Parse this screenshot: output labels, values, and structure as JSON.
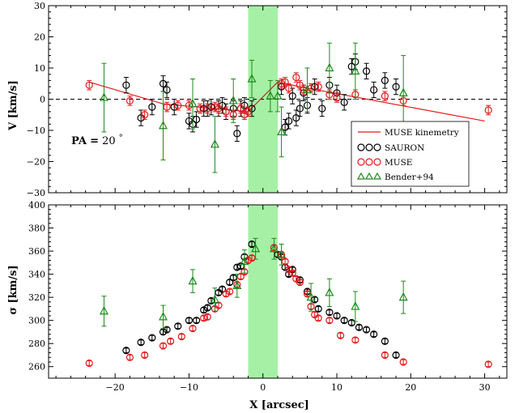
{
  "chart_data": [
    {
      "type": "scatter",
      "panel": "velocity",
      "ylabel": "V [km/s]",
      "xlim": [
        -29,
        33
      ],
      "ylim": [
        -30,
        30
      ],
      "yticks": [
        -30,
        -20,
        -10,
        0,
        10,
        20,
        30
      ],
      "xticks": [
        -20,
        -10,
        0,
        10,
        20,
        30
      ],
      "xticklabels_shown": false,
      "shaded_band": [
        -2,
        2
      ],
      "zero_line": true,
      "annotation": {
        "label": "PA",
        "eq": "=",
        "value": "20",
        "unit": "°"
      },
      "legend": {
        "placement": "lower-right",
        "entries": [
          {
            "label": "MUSE kinemetry",
            "marker": "line",
            "color": "#e41a1c"
          },
          {
            "label": "SAURON",
            "marker": "circle",
            "color": "#000000"
          },
          {
            "label": "MUSE",
            "marker": "circle",
            "color": "#e41a1c"
          },
          {
            "label": "Bender+94",
            "marker": "triangle",
            "color": "#1a8a1a"
          }
        ]
      },
      "series": [
        {
          "name": "MUSE kinemetry",
          "style": "line",
          "color": "#e41a1c",
          "x": [
            -23.5,
            -13.5,
            -2,
            2,
            5,
            30
          ],
          "y": [
            5.5,
            -1.5,
            -4,
            5.5,
            4,
            -7
          ]
        },
        {
          "name": "SAURON",
          "style": "circle",
          "color": "#000000",
          "x": [
            -18.5,
            -16.5,
            -15,
            -13.5,
            -13,
            -12,
            -10,
            -9.5,
            -9,
            -8,
            -7.5,
            -7,
            -6,
            -5.5,
            -5,
            -4,
            -3.5,
            -3,
            -2.5,
            -1.5,
            2.5,
            3,
            3.5,
            4,
            4.5,
            5,
            5.5,
            6,
            7,
            8,
            9,
            10,
            11,
            12,
            12.5,
            14,
            15,
            16.5,
            18
          ],
          "y": [
            4.5,
            -6,
            -2.5,
            5,
            3,
            -2.5,
            -7,
            -8,
            -6.5,
            -3,
            -3,
            -2.5,
            -3,
            -2,
            -4,
            -3,
            -11,
            -3,
            -2,
            -3,
            4,
            -9,
            -7,
            1,
            -6,
            -3,
            2,
            -2,
            4,
            -3,
            4.5,
            2,
            -1,
            10.5,
            12,
            9,
            3,
            6,
            4
          ],
          "err": [
            2.5,
            2.5,
            2.5,
            2.5,
            2.5,
            2.5,
            2.5,
            2.5,
            2.5,
            2.5,
            2.5,
            2.5,
            2.5,
            2.5,
            2.5,
            2.5,
            2.5,
            2.5,
            2.5,
            2.5,
            2.5,
            2.5,
            2.5,
            2.5,
            2.5,
            2.5,
            2.5,
            2.5,
            2.5,
            2.5,
            2.5,
            2.5,
            2.5,
            2.5,
            2.5,
            2.5,
            2.5,
            2.5,
            2.5
          ]
        },
        {
          "name": "MUSE",
          "style": "circle",
          "color": "#e41a1c",
          "x": [
            -23.5,
            -18,
            -16,
            -13,
            -11.5,
            -10,
            -8.5,
            -7.5,
            -6.5,
            -6,
            -5,
            -4,
            -3,
            -2.5,
            -2,
            2.5,
            3,
            3.5,
            4.5,
            5,
            5.5,
            6.5,
            7.5,
            9,
            10,
            12.5,
            16.5,
            19,
            30.5
          ],
          "y": [
            4.5,
            -0.5,
            -5,
            -2.5,
            -2,
            -2,
            -3,
            -3,
            -2.5,
            -3,
            -4,
            -5,
            -3,
            -5,
            -4,
            5,
            5.5,
            3.5,
            7,
            4.5,
            3,
            3.5,
            4,
            1.5,
            0.5,
            1.5,
            1,
            -0.5,
            -3.5
          ],
          "err": [
            1.5,
            1.5,
            1.5,
            1.5,
            1.5,
            1.5,
            1.5,
            1.5,
            1.5,
            1.5,
            1.5,
            1.5,
            1.5,
            1.5,
            1.5,
            1.5,
            1.5,
            1.5,
            1.5,
            1.5,
            1.5,
            1.5,
            1.5,
            1.5,
            1.5,
            1.5,
            1.5,
            1.5,
            1.5
          ]
        },
        {
          "name": "Bender+94",
          "style": "triangle",
          "color": "#1a8a1a",
          "x": [
            -21.5,
            -13.5,
            -9.5,
            -6.5,
            -4,
            -1.5,
            1,
            2,
            2.5,
            6,
            9,
            12.5,
            19
          ],
          "y": [
            0.5,
            -8.5,
            -1.5,
            -14.5,
            -0.5,
            6.5,
            1,
            1,
            -10.5,
            3,
            10,
            9,
            2
          ],
          "err": [
            11,
            11,
            8,
            9,
            7,
            6,
            5,
            5,
            8,
            7,
            8,
            9,
            12
          ]
        }
      ]
    },
    {
      "type": "scatter",
      "panel": "dispersion",
      "xlabel": "X [arcsec]",
      "ylabel": "σ [km/s]",
      "xlim": [
        -29,
        33
      ],
      "ylim": [
        250,
        400
      ],
      "yticks": [
        260,
        280,
        300,
        320,
        340,
        360,
        380,
        400
      ],
      "xticks": [
        -20,
        -10,
        0,
        10,
        20,
        30
      ],
      "shaded_band": [
        -2,
        2
      ],
      "series": [
        {
          "name": "SAURON",
          "style": "circle",
          "color": "#000000",
          "x": [
            -18.5,
            -16.5,
            -15,
            -13.5,
            -13,
            -11.5,
            -10,
            -9,
            -8,
            -7.5,
            -7,
            -6,
            -5.5,
            -4.5,
            -4,
            -3.5,
            -3,
            -2.5,
            -1.5,
            2,
            2.5,
            3,
            3.5,
            4,
            5,
            6,
            7,
            7.5,
            9,
            10,
            11,
            12,
            13,
            14,
            15,
            16.5,
            18
          ],
          "y": [
            274,
            281,
            285,
            290,
            292,
            295,
            300,
            300,
            309,
            311,
            317,
            324,
            327,
            333,
            337,
            346,
            347,
            355,
            366,
            357,
            355,
            346,
            340,
            344,
            335,
            325,
            318,
            310,
            307,
            304,
            300,
            298,
            294,
            292,
            288,
            282,
            270
          ],
          "err": [
            2,
            2,
            2,
            2,
            2,
            2,
            2,
            2,
            2,
            2,
            2,
            2,
            2,
            2,
            2,
            2,
            2,
            2,
            2,
            2,
            2,
            2,
            2,
            2,
            2,
            2,
            2,
            2,
            2,
            2,
            2,
            2,
            2,
            2,
            2,
            2,
            2
          ]
        },
        {
          "name": "MUSE",
          "style": "circle",
          "color": "#e41a1c",
          "x": [
            -23.5,
            -18,
            -16,
            -13.5,
            -12.5,
            -11,
            -9.5,
            -8,
            -7.5,
            -6.5,
            -6,
            -5,
            -4.5,
            -3.5,
            -3,
            -2.5,
            -2,
            -1.5,
            1.5,
            2.5,
            3,
            3.5,
            4,
            4.5,
            5,
            6,
            6.5,
            7,
            7.5,
            9,
            10.5,
            12.5,
            16.5,
            19,
            30.5
          ],
          "y": [
            263,
            268,
            270,
            278,
            282,
            286,
            293,
            302,
            303,
            310,
            313,
            323,
            325,
            331,
            338,
            342,
            352,
            354,
            363,
            357,
            351,
            344,
            341,
            336,
            333,
            323,
            312,
            305,
            302,
            300,
            287,
            283,
            270,
            264,
            262
          ],
          "err": [
            2,
            2,
            2,
            2,
            2,
            2,
            2,
            2,
            2,
            2,
            2,
            2,
            2,
            2,
            2,
            2,
            2,
            2,
            2,
            2,
            2,
            2,
            2,
            2,
            2,
            2,
            2,
            2,
            2,
            2,
            2,
            2,
            2,
            2,
            2
          ]
        },
        {
          "name": "Bender+94",
          "style": "triangle",
          "color": "#1a8a1a",
          "x": [
            -21.5,
            -13.5,
            -9.5,
            -6.5,
            -3.5,
            -2.5,
            -1,
            1.5,
            2.5,
            6.5,
            9,
            12.5,
            19
          ],
          "y": [
            308,
            303,
            334,
            318,
            330,
            351,
            362,
            362,
            357,
            320,
            324,
            312,
            320
          ],
          "err": [
            13,
            10,
            10,
            10,
            10,
            10,
            9,
            9,
            9,
            12,
            12,
            13,
            14
          ]
        }
      ]
    }
  ]
}
